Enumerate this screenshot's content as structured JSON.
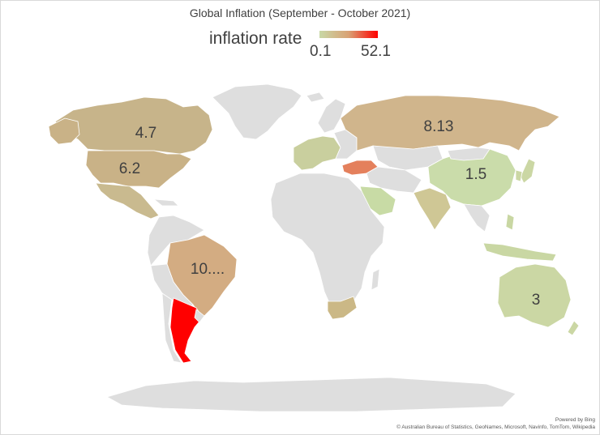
{
  "title": "Global Inflation (September - October 2021)",
  "legend": {
    "title": "inflation rate",
    "min_label": "0.1",
    "max_label": "52.1",
    "min_color": "#c8d8a6",
    "mid_color": "#d9a275",
    "max_color": "#ff0000"
  },
  "colors": {
    "no_data": "#dedede",
    "border": "#ffffff",
    "ocean": "#ffffff"
  },
  "countries": [
    {
      "name": "Canada",
      "value": 4.7,
      "label": "4.7",
      "color": "#c7b48a"
    },
    {
      "name": "United States",
      "value": 6.2,
      "label": "6.2",
      "color": "#c9b287"
    },
    {
      "name": "Russia",
      "value": 8.13,
      "label": "8.13",
      "color": "#d0b58c"
    },
    {
      "name": "China",
      "value": 1.5,
      "label": "1.5",
      "color": "#cadcaa"
    },
    {
      "name": "Brazil",
      "value": 10.25,
      "label": "10....",
      "color": "#d3ac82"
    },
    {
      "name": "Australia",
      "value": 3,
      "label": "3",
      "color": "#cbd7a4"
    },
    {
      "name": "Argentina",
      "value": 52.1,
      "label": "",
      "color": "#ff0000"
    },
    {
      "name": "Turkey",
      "value": 19.89,
      "label": "",
      "color": "#e4805c"
    }
  ],
  "credits": {
    "line1": "Powered by Bing",
    "line2": "© Australian Bureau of Statistics, GeoNames, Microsoft, Navinfo, TomTom, Wikipedia"
  }
}
